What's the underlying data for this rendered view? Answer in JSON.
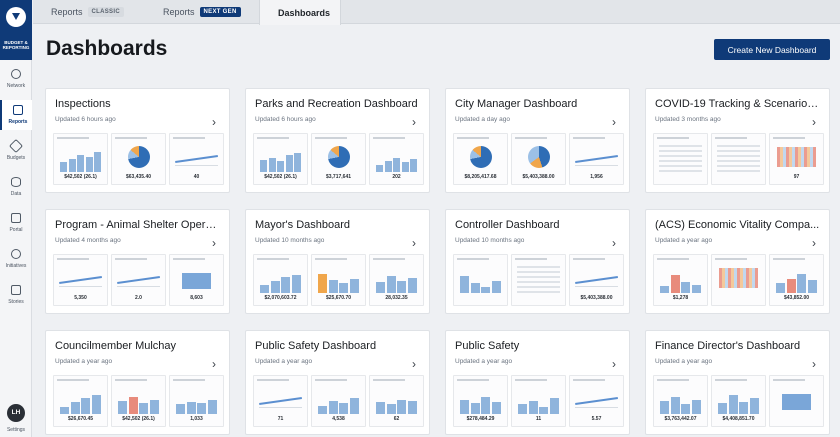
{
  "app": {
    "brand": "BUDGET & REPORTING",
    "title": "Dashboards"
  },
  "tabs": [
    {
      "label": "Reports",
      "chip": "CLASSIC"
    },
    {
      "label": "Reports",
      "chip": "NEXT GEN"
    },
    {
      "label": "Dashboards",
      "chip": ""
    }
  ],
  "rail": [
    {
      "label": "Network",
      "icon": "globe-icon"
    },
    {
      "label": "Reports",
      "icon": "document-icon"
    },
    {
      "label": "Budgets",
      "icon": "diamond-icon"
    },
    {
      "label": "Data",
      "icon": "database-icon"
    },
    {
      "label": "Portal",
      "icon": "building-icon"
    },
    {
      "label": "Initiatives",
      "icon": "target-icon"
    },
    {
      "label": "Stories",
      "icon": "story-icon"
    }
  ],
  "user": {
    "initials": "LH",
    "label": "Settings"
  },
  "create_button": "Create New Dashboard",
  "cards": [
    {
      "title": "Inspections",
      "updated": "Updated 6 hours ago",
      "values": [
        "$42,502 (26.1)",
        "$63,435.40",
        "40"
      ]
    },
    {
      "title": "Parks and Recreation Dashboard",
      "updated": "Updated 6 hours ago",
      "values": [
        "$42,502 (26.1)",
        "$3,717,641",
        "202"
      ]
    },
    {
      "title": "City Manager Dashboard",
      "updated": "Updated a day ago",
      "values": [
        "$8,205,417.68",
        "$5,403,388.00",
        "1,956"
      ]
    },
    {
      "title": "COVID-19 Tracking & Scenario P...",
      "updated": "Updated 3 months ago",
      "values": [
        "",
        "",
        "97"
      ]
    },
    {
      "title": "Program - Animal Shelter Opera...",
      "updated": "Updated 4 months ago",
      "values": [
        "5,350",
        "2.0",
        "8,603"
      ]
    },
    {
      "title": "Mayor's Dashboard",
      "updated": "Updated 10 months ago",
      "values": [
        "$2,070,603.72",
        "$25,670.70",
        "28,032.35"
      ]
    },
    {
      "title": "Controller Dashboard",
      "updated": "Updated 10 months ago",
      "values": [
        "",
        "",
        "$5,403,388.00"
      ]
    },
    {
      "title": "(ACS) Economic Vitality Compa...",
      "updated": "Updated a year ago",
      "values": [
        "$1,278",
        "",
        "$43,852.00"
      ]
    },
    {
      "title": "Councilmember Mulchay",
      "updated": "Updated a year ago",
      "values": [
        "$26,670.45",
        "$42,502 (26.1)",
        "1,033"
      ]
    },
    {
      "title": "Public Safety Dashboard",
      "updated": "Updated a year ago",
      "values": [
        "71",
        "4,538",
        "62"
      ]
    },
    {
      "title": "Public Safety",
      "updated": "Updated a year ago",
      "values": [
        "$278,484.29",
        "11",
        "5.57"
      ]
    },
    {
      "title": "Finance Director's Dashboard",
      "updated": "Updated a year ago",
      "values": [
        "$3,763,442.07",
        "$4,408,851.70",
        ""
      ]
    }
  ]
}
